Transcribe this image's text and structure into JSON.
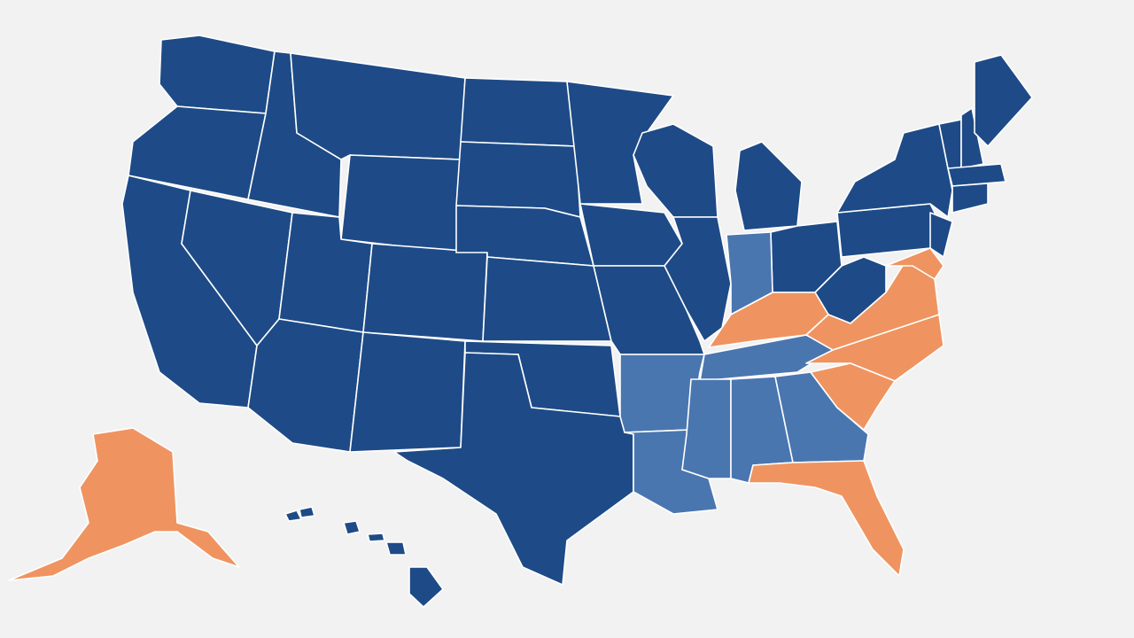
{
  "map": {
    "fills": [
      "#1e4b87",
      "#4a76b0",
      "#ef9460"
    ]
  }
}
